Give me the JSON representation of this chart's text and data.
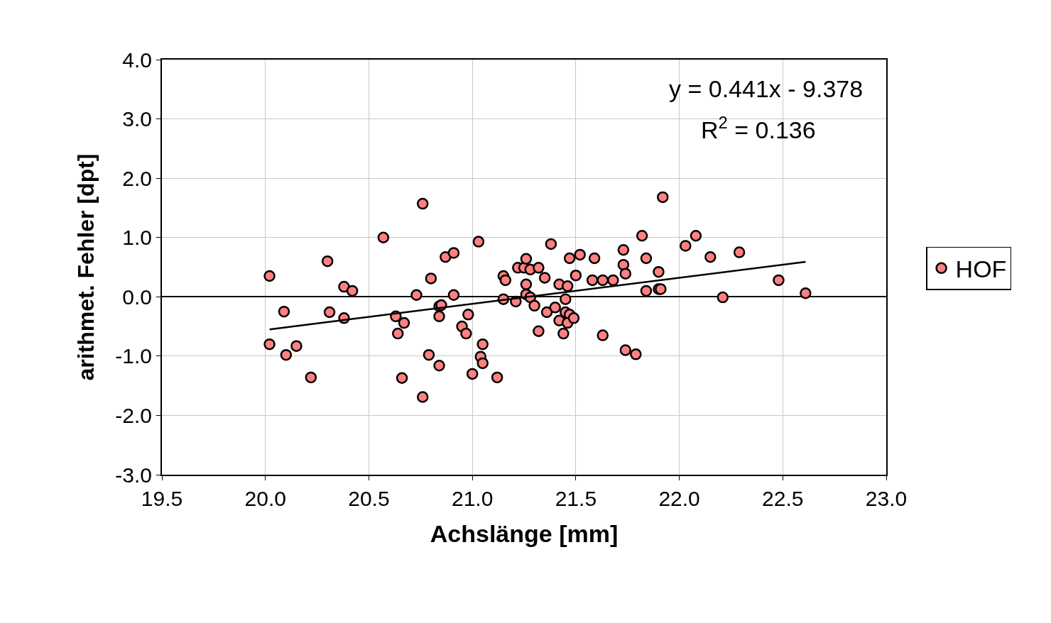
{
  "chart_data": {
    "type": "scatter",
    "xlabel": "Achslänge [mm]",
    "ylabel": "arithmet. Fehler [dpt]",
    "xlim": [
      19.5,
      23.0
    ],
    "ylim": [
      -3.0,
      4.0
    ],
    "xticks": [
      {
        "value": 19.5,
        "label": "19.5"
      },
      {
        "value": 20,
        "label": "20.0"
      },
      {
        "value": 20.5,
        "label": "20.5"
      },
      {
        "value": 21,
        "label": "21.0"
      },
      {
        "value": 21.5,
        "label": "21.5"
      },
      {
        "value": 22,
        "label": "22.0"
      },
      {
        "value": 22.5,
        "label": "22.5"
      },
      {
        "value": 23,
        "label": "23.0"
      }
    ],
    "yticks": [
      {
        "value": -3,
        "label": "-3.0"
      },
      {
        "value": -2,
        "label": "-2.0"
      },
      {
        "value": -1,
        "label": "-1.0"
      },
      {
        "value": 0,
        "label": "0.0"
      },
      {
        "value": 1,
        "label": "1.0"
      },
      {
        "value": 2,
        "label": "2.0"
      },
      {
        "value": 3,
        "label": "3.0"
      },
      {
        "value": 4,
        "label": "4.0"
      }
    ],
    "grid": true,
    "legend": "right",
    "marker": "circle",
    "series": [
      {
        "name": "HOF",
        "color": "#ff8080",
        "x": [
          20.02,
          20.02,
          20.09,
          20.1,
          20.15,
          20.22,
          20.3,
          20.31,
          20.38,
          20.38,
          20.42,
          20.57,
          20.63,
          20.64,
          20.67,
          20.66,
          20.73,
          20.76,
          20.76,
          20.79,
          20.8,
          20.84,
          20.84,
          20.85,
          20.84,
          20.87,
          20.91,
          20.91,
          20.95,
          20.97,
          20.98,
          21.0,
          21.03,
          21.04,
          21.05,
          21.05,
          21.12,
          21.15,
          21.16,
          21.15,
          21.21,
          21.22,
          21.25,
          21.26,
          21.26,
          21.28,
          21.26,
          21.28,
          21.3,
          21.32,
          21.32,
          21.35,
          21.36,
          21.38,
          21.4,
          21.42,
          21.42,
          21.45,
          21.45,
          21.46,
          21.47,
          21.47,
          21.46,
          21.49,
          21.44,
          21.5,
          21.52,
          21.58,
          21.59,
          21.63,
          21.63,
          21.68,
          21.73,
          21.73,
          21.74,
          21.74,
          21.79,
          21.82,
          21.84,
          21.84,
          21.9,
          21.91,
          21.9,
          21.92,
          22.03,
          22.08,
          22.15,
          22.21,
          22.29,
          22.48,
          22.61
        ],
        "values": [
          0.35,
          -0.8,
          -0.25,
          -0.98,
          -0.83,
          -1.36,
          0.6,
          -0.26,
          0.17,
          -0.36,
          0.1,
          1.0,
          -0.33,
          -0.62,
          -0.44,
          -1.37,
          0.03,
          1.57,
          -1.69,
          -0.98,
          0.31,
          -0.16,
          -1.16,
          -0.14,
          -0.33,
          0.67,
          0.74,
          0.03,
          -0.5,
          -0.62,
          -0.3,
          -1.3,
          0.93,
          -1.01,
          -1.12,
          -0.8,
          -1.36,
          0.35,
          0.28,
          -0.04,
          -0.08,
          0.49,
          0.49,
          0.64,
          0.21,
          0.46,
          0.04,
          -0.01,
          -0.15,
          0.49,
          -0.58,
          0.32,
          -0.26,
          0.89,
          -0.18,
          0.21,
          -0.4,
          -0.26,
          -0.04,
          0.18,
          0.65,
          -0.3,
          -0.44,
          -0.36,
          -0.62,
          0.36,
          0.71,
          0.28,
          0.65,
          0.28,
          -0.65,
          0.28,
          0.79,
          0.54,
          0.39,
          -0.9,
          -0.97,
          1.03,
          0.65,
          0.1,
          0.13,
          0.13,
          0.42,
          1.68,
          0.86,
          1.03,
          0.67,
          -0.01,
          0.75,
          0.28,
          0.06
        ]
      },
      {
        "type": "line",
        "color": "#000000",
        "marker": "none",
        "x": [
          20.02,
          22.61
        ],
        "values": [
          -0.55,
          0.59
        ]
      }
    ],
    "annotations": [
      "y = 0.441x - 9.378",
      "R$^{2}$ = 0.136"
    ]
  }
}
